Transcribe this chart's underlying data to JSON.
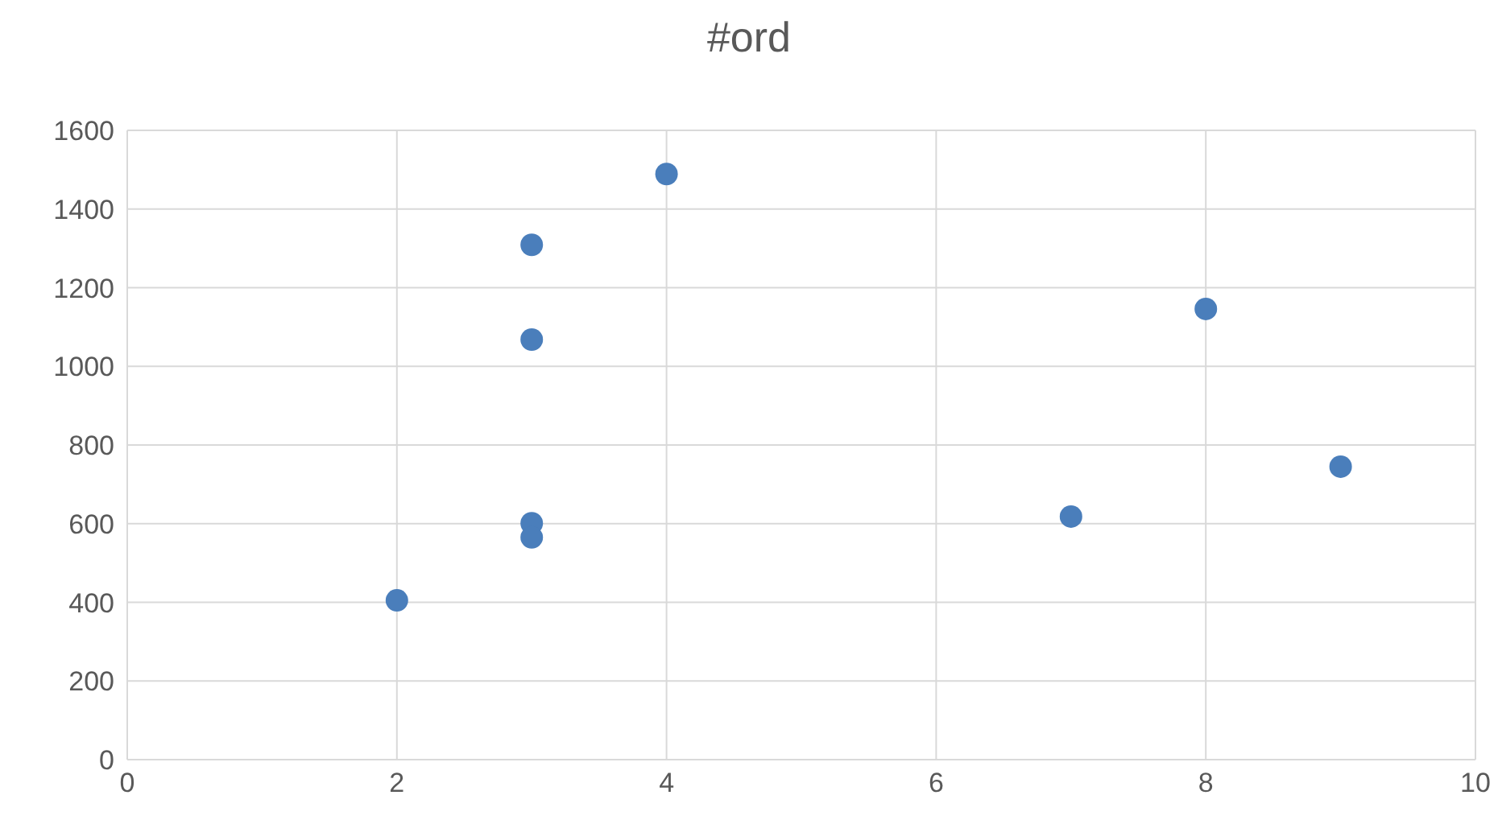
{
  "chart_data": {
    "type": "scatter",
    "title": "#ord",
    "x": [
      2,
      3,
      3,
      3,
      3,
      4,
      7,
      8,
      9
    ],
    "values": [
      405,
      1309,
      1068,
      601,
      565,
      1489,
      618,
      1146,
      745
    ],
    "color": "#4a7ebb",
    "xlim": [
      0,
      10
    ],
    "xticks": [
      0,
      2,
      4,
      6,
      8,
      10
    ],
    "ylim": [
      0,
      1600
    ],
    "yticks": [
      0,
      200,
      400,
      600,
      800,
      1000,
      1200,
      1400,
      1600
    ],
    "grid": true,
    "marker": "circle",
    "legend": false
  }
}
